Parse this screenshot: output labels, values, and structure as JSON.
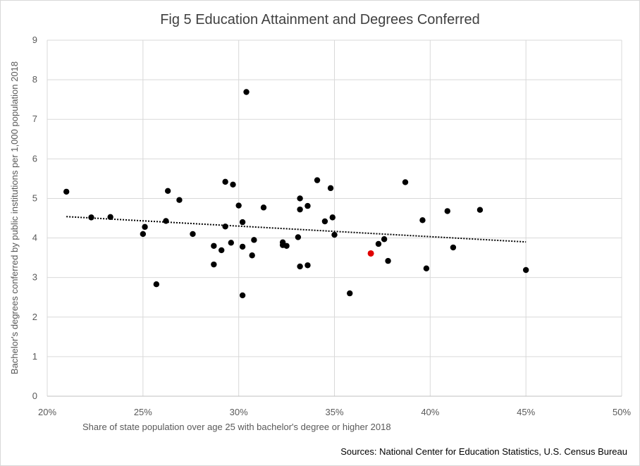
{
  "chart_data": {
    "type": "scatter",
    "title": "Fig 5 Education Attainment and Degrees Conferred",
    "xlabel": "Share of state population over age 25 with bachelor's degree or higher 2018",
    "ylabel": "Bachelor's degrees conferred by public institutions per 1,000  population 2018",
    "source": "Sources: National Center for Education Statistics, U.S. Census Bureau",
    "xlim": [
      20,
      50
    ],
    "ylim": [
      0,
      9
    ],
    "x_ticks": [
      "20%",
      "25%",
      "30%",
      "35%",
      "40%",
      "45%",
      "50%"
    ],
    "y_ticks": [
      "0",
      "1",
      "2",
      "3",
      "4",
      "5",
      "6",
      "7",
      "8",
      "9"
    ],
    "grid": "major",
    "trendline": {
      "style": "dotted",
      "x": [
        21,
        45
      ],
      "y": [
        4.54,
        3.9
      ]
    },
    "colors": {
      "points": "#000000",
      "highlight": "#e00000",
      "grid": "#d9d9d9",
      "trend": "#000000"
    },
    "points": [
      [
        21.0,
        5.17
      ],
      [
        22.3,
        4.52
      ],
      [
        23.3,
        4.53
      ],
      [
        25.0,
        4.1
      ],
      [
        25.1,
        4.28
      ],
      [
        25.7,
        2.83
      ],
      [
        26.2,
        4.43
      ],
      [
        26.3,
        5.19
      ],
      [
        26.9,
        4.96
      ],
      [
        27.6,
        4.1
      ],
      [
        28.7,
        3.8
      ],
      [
        28.7,
        3.33
      ],
      [
        29.1,
        3.69
      ],
      [
        29.3,
        4.29
      ],
      [
        29.3,
        5.42
      ],
      [
        29.6,
        3.88
      ],
      [
        29.7,
        5.35
      ],
      [
        30.0,
        4.82
      ],
      [
        30.2,
        3.78
      ],
      [
        30.2,
        4.4
      ],
      [
        30.2,
        2.55
      ],
      [
        30.4,
        7.69
      ],
      [
        30.7,
        3.56
      ],
      [
        30.8,
        3.95
      ],
      [
        31.3,
        4.77
      ],
      [
        32.3,
        3.89
      ],
      [
        32.3,
        3.82
      ],
      [
        32.5,
        3.8
      ],
      [
        33.1,
        4.02
      ],
      [
        33.2,
        3.28
      ],
      [
        33.2,
        4.72
      ],
      [
        33.2,
        5.0
      ],
      [
        33.6,
        4.81
      ],
      [
        33.6,
        3.31
      ],
      [
        34.1,
        5.46
      ],
      [
        34.5,
        4.42
      ],
      [
        34.8,
        5.26
      ],
      [
        34.9,
        4.52
      ],
      [
        35.0,
        4.08
      ],
      [
        35.8,
        2.6
      ],
      [
        37.3,
        3.85
      ],
      [
        37.6,
        3.97
      ],
      [
        37.8,
        3.42
      ],
      [
        38.7,
        5.41
      ],
      [
        39.6,
        4.45
      ],
      [
        39.8,
        3.23
      ],
      [
        40.9,
        4.68
      ],
      [
        41.2,
        3.76
      ],
      [
        42.6,
        4.71
      ],
      [
        45.0,
        3.19
      ]
    ],
    "highlight_points": [
      [
        36.9,
        3.61
      ]
    ]
  }
}
